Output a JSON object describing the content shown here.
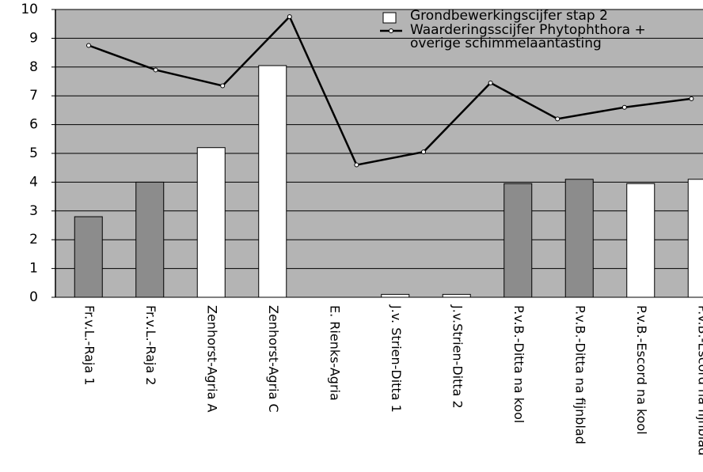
{
  "chart_data": {
    "type": "bar",
    "categories": [
      "Fr.v.L.-Raja 1",
      "Fr.v.L.-Raja 2",
      "Zenhorst-Agria A",
      "Zenhorst-Agria C",
      "E. Rienks-Agria",
      "J.v. Strien-Ditta 1",
      "J.v.Strien-Ditta 2",
      "P.v.B.-Ditta na kool",
      "P.v.B.-Ditta na fijnblad",
      "P.v.B.-Escord na kool",
      "P.v.B.-Escord na fijnblad"
    ],
    "series": [
      {
        "name": "Grondbewerkingscijfer stap 2",
        "type": "bar",
        "color": "#ffffff",
        "colors": [
          "#8c8c8c",
          "#8c8c8c",
          "#ffffff",
          "#ffffff",
          "#ffffff",
          "#ffffff",
          "#ffffff",
          "#8c8c8c",
          "#8c8c8c",
          "#ffffff",
          "#ffffff"
        ],
        "values": [
          2.8,
          4.0,
          5.2,
          8.05,
          0,
          0.1,
          0.1,
          3.95,
          4.1,
          3.95,
          4.1
        ]
      },
      {
        "name": "Waarderingsscijfer Phytophthora + overige schimmelaantasting",
        "type": "line",
        "color": "#000000",
        "values": [
          8.75,
          7.9,
          7.35,
          9.75,
          4.6,
          5.05,
          7.45,
          6.2,
          6.6,
          6.9,
          null
        ]
      }
    ],
    "ylim": [
      0,
      10
    ],
    "yticks": [
      0,
      1,
      2,
      3,
      4,
      5,
      6,
      7,
      8,
      9,
      10
    ],
    "grid": true,
    "legend": "top-right"
  }
}
